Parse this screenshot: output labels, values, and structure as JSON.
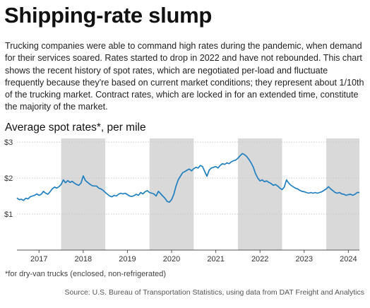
{
  "title": "Shipping-rate slump",
  "intro": "Trucking companies were able to command high rates during the pandemic, when demand for their services soared. Rates started to drop in 2022 and have not rebounded. This chart shows the recent history of spot rates, which  are negotiated per-load and fluctuate frequently because they're based on current market conditions; they represent about 1/10th of the trucking market. Contract rates, which are locked in for an extended time, constitute the majority of the market.",
  "footnote": "*for dry-van trucks (enclosed, non-refrigerated)",
  "source": "Source: U.S. Bureau of Transportation Statistics, using data from DAT Freight and Analytics",
  "colors": {
    "line": "#1f7fc0",
    "shade": "#d9d9d9",
    "grid": "#c9c9c9",
    "axis": "#555555"
  },
  "chart_data": {
    "type": "line",
    "title": "Average spot rates*, per mile",
    "xlabel": "",
    "ylabel": "",
    "x_tick_labels": [
      "2017",
      "2018",
      "2019",
      "2020",
      "2021",
      "2022",
      "2023",
      "2024"
    ],
    "x_tick_values": [
      2017,
      2018,
      2019,
      2020,
      2021,
      2022,
      2023,
      2024
    ],
    "y_tick_labels": [
      "$1",
      "$2",
      "$3"
    ],
    "y_tick_values": [
      1,
      2,
      3
    ],
    "xlim": [
      2016.5,
      2024.25
    ],
    "ylim": [
      0.0,
      3.1
    ],
    "grid": true,
    "shaded_periods": [
      [
        2017.5,
        2018.5
      ],
      [
        2019.5,
        2020.5
      ],
      [
        2021.5,
        2022.5
      ],
      [
        2023.5,
        2024.25
      ]
    ],
    "series": [
      {
        "values": [
          [
            2016.5,
            1.45
          ],
          [
            2016.55,
            1.4
          ],
          [
            2016.6,
            1.41
          ],
          [
            2016.65,
            1.38
          ],
          [
            2016.7,
            1.44
          ],
          [
            2016.75,
            1.42
          ],
          [
            2016.8,
            1.48
          ],
          [
            2016.85,
            1.5
          ],
          [
            2016.9,
            1.52
          ],
          [
            2016.95,
            1.56
          ],
          [
            2017.0,
            1.52
          ],
          [
            2017.05,
            1.55
          ],
          [
            2017.1,
            1.63
          ],
          [
            2017.15,
            1.58
          ],
          [
            2017.2,
            1.55
          ],
          [
            2017.25,
            1.62
          ],
          [
            2017.3,
            1.7
          ],
          [
            2017.35,
            1.75
          ],
          [
            2017.4,
            1.72
          ],
          [
            2017.45,
            1.76
          ],
          [
            2017.5,
            1.82
          ],
          [
            2017.55,
            1.95
          ],
          [
            2017.6,
            1.87
          ],
          [
            2017.65,
            1.93
          ],
          [
            2017.7,
            1.88
          ],
          [
            2017.75,
            1.91
          ],
          [
            2017.8,
            1.86
          ],
          [
            2017.85,
            1.82
          ],
          [
            2017.9,
            1.8
          ],
          [
            2017.95,
            1.86
          ],
          [
            2018.0,
            2.06
          ],
          [
            2018.05,
            1.93
          ],
          [
            2018.1,
            1.88
          ],
          [
            2018.15,
            1.83
          ],
          [
            2018.2,
            1.79
          ],
          [
            2018.25,
            1.78
          ],
          [
            2018.3,
            1.78
          ],
          [
            2018.35,
            1.72
          ],
          [
            2018.4,
            1.7
          ],
          [
            2018.45,
            1.66
          ],
          [
            2018.5,
            1.6
          ],
          [
            2018.55,
            1.55
          ],
          [
            2018.6,
            1.5
          ],
          [
            2018.65,
            1.48
          ],
          [
            2018.7,
            1.52
          ],
          [
            2018.75,
            1.5
          ],
          [
            2018.8,
            1.55
          ],
          [
            2018.85,
            1.58
          ],
          [
            2018.9,
            1.56
          ],
          [
            2018.95,
            1.58
          ],
          [
            2019.0,
            1.54
          ],
          [
            2019.05,
            1.5
          ],
          [
            2019.1,
            1.49
          ],
          [
            2019.15,
            1.51
          ],
          [
            2019.2,
            1.55
          ],
          [
            2019.25,
            1.52
          ],
          [
            2019.3,
            1.6
          ],
          [
            2019.35,
            1.56
          ],
          [
            2019.4,
            1.62
          ],
          [
            2019.45,
            1.65
          ],
          [
            2019.5,
            1.6
          ],
          [
            2019.55,
            1.58
          ],
          [
            2019.6,
            1.56
          ],
          [
            2019.65,
            1.5
          ],
          [
            2019.7,
            1.63
          ],
          [
            2019.75,
            1.57
          ],
          [
            2019.8,
            1.5
          ],
          [
            2019.85,
            1.44
          ],
          [
            2019.9,
            1.35
          ],
          [
            2019.95,
            1.33
          ],
          [
            2020.0,
            1.4
          ],
          [
            2020.05,
            1.55
          ],
          [
            2020.1,
            1.78
          ],
          [
            2020.15,
            1.95
          ],
          [
            2020.2,
            2.05
          ],
          [
            2020.25,
            2.15
          ],
          [
            2020.3,
            2.18
          ],
          [
            2020.35,
            2.22
          ],
          [
            2020.4,
            2.25
          ],
          [
            2020.45,
            2.2
          ],
          [
            2020.5,
            2.26
          ],
          [
            2020.55,
            2.3
          ],
          [
            2020.6,
            2.28
          ],
          [
            2020.65,
            2.35
          ],
          [
            2020.7,
            2.32
          ],
          [
            2020.75,
            2.18
          ],
          [
            2020.8,
            2.05
          ],
          [
            2020.85,
            2.22
          ],
          [
            2020.9,
            2.28
          ],
          [
            2020.95,
            2.3
          ],
          [
            2021.0,
            2.32
          ],
          [
            2021.05,
            2.28
          ],
          [
            2021.1,
            2.35
          ],
          [
            2021.15,
            2.4
          ],
          [
            2021.2,
            2.38
          ],
          [
            2021.25,
            2.42
          ],
          [
            2021.3,
            2.4
          ],
          [
            2021.35,
            2.45
          ],
          [
            2021.4,
            2.48
          ],
          [
            2021.45,
            2.5
          ],
          [
            2021.5,
            2.55
          ],
          [
            2021.55,
            2.62
          ],
          [
            2021.6,
            2.68
          ],
          [
            2021.65,
            2.65
          ],
          [
            2021.7,
            2.6
          ],
          [
            2021.75,
            2.52
          ],
          [
            2021.8,
            2.42
          ],
          [
            2021.85,
            2.3
          ],
          [
            2021.9,
            2.12
          ],
          [
            2021.95,
            2.0
          ],
          [
            2022.0,
            1.92
          ],
          [
            2022.05,
            1.95
          ],
          [
            2022.1,
            1.9
          ],
          [
            2022.15,
            1.92
          ],
          [
            2022.2,
            1.88
          ],
          [
            2022.25,
            1.85
          ],
          [
            2022.3,
            1.8
          ],
          [
            2022.35,
            1.82
          ],
          [
            2022.4,
            1.78
          ],
          [
            2022.45,
            1.72
          ],
          [
            2022.5,
            1.68
          ],
          [
            2022.55,
            1.75
          ],
          [
            2022.6,
            1.95
          ],
          [
            2022.65,
            1.86
          ],
          [
            2022.7,
            1.8
          ],
          [
            2022.75,
            1.76
          ],
          [
            2022.8,
            1.72
          ],
          [
            2022.85,
            1.7
          ],
          [
            2022.9,
            1.66
          ],
          [
            2022.95,
            1.63
          ],
          [
            2023.0,
            1.62
          ],
          [
            2023.05,
            1.6
          ],
          [
            2023.1,
            1.58
          ],
          [
            2023.15,
            1.6
          ],
          [
            2023.2,
            1.58
          ],
          [
            2023.25,
            1.6
          ],
          [
            2023.3,
            1.58
          ],
          [
            2023.35,
            1.6
          ],
          [
            2023.4,
            1.62
          ],
          [
            2023.45,
            1.66
          ],
          [
            2023.5,
            1.7
          ],
          [
            2023.55,
            1.76
          ],
          [
            2023.6,
            1.7
          ],
          [
            2023.65,
            1.65
          ],
          [
            2023.7,
            1.6
          ],
          [
            2023.75,
            1.58
          ],
          [
            2023.8,
            1.6
          ],
          [
            2023.85,
            1.56
          ],
          [
            2023.9,
            1.55
          ],
          [
            2023.95,
            1.52
          ],
          [
            2024.0,
            1.54
          ],
          [
            2024.05,
            1.55
          ],
          [
            2024.1,
            1.52
          ],
          [
            2024.15,
            1.55
          ],
          [
            2024.2,
            1.6
          ],
          [
            2024.25,
            1.6
          ]
        ]
      }
    ]
  }
}
